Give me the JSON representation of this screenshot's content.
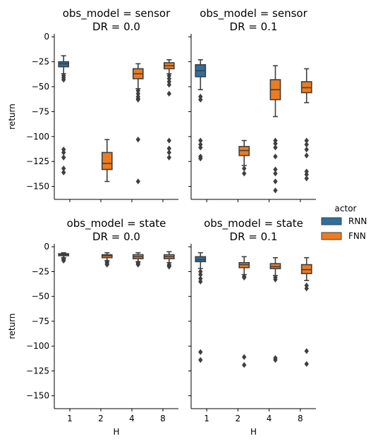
{
  "chart_data": {
    "type": "box",
    "hue_title": "actor",
    "hue_levels": [
      "RNN",
      "FNN"
    ],
    "colors": {
      "RNN": "#2f6f9e",
      "FNN": "#ec7c22",
      "line": "#3f3f3f"
    },
    "x_categories": [
      "1",
      "2",
      "4",
      "8"
    ],
    "xlabel": "H",
    "ylabel": "return",
    "ylim": [
      -163,
      3
    ],
    "yticks": [
      0,
      -25,
      -50,
      -75,
      -100,
      -125,
      -150
    ],
    "ytick_labels": [
      "0",
      "−25",
      "−50",
      "−75",
      "−100",
      "−125",
      "−150"
    ],
    "panels": [
      {
        "title_line1": "obs_model = sensor",
        "title_line2": "DR = 0.0",
        "boxes": [
          {
            "x": "1",
            "hue": "RNN",
            "q1": -30,
            "median": -27,
            "q3": -25,
            "whisker_low": -37,
            "whisker_high": -19,
            "outliers": [
              -39,
              -41,
              -43,
              -113,
              -116,
              -121,
              -132,
              -136
            ]
          },
          {
            "x": "2",
            "hue": "FNN",
            "q1": -133,
            "median": -127,
            "q3": -116,
            "whisker_low": -145,
            "whisker_high": -103,
            "outliers": []
          },
          {
            "x": "4",
            "hue": "FNN",
            "q1": -42,
            "median": -37,
            "q3": -32,
            "whisker_low": -52,
            "whisker_high": -27,
            "outliers": [
              -54,
              -57,
              -60,
              -62,
              -63,
              -103,
              -145
            ]
          },
          {
            "x": "8",
            "hue": "FNN",
            "q1": -32,
            "median": -29,
            "q3": -26,
            "whisker_low": -37,
            "whisker_high": -23,
            "outliers": [
              -39,
              -42,
              -45,
              -48,
              -57,
              -104,
              -112,
              -116,
              -121
            ]
          }
        ]
      },
      {
        "title_line1": "obs_model = sensor",
        "title_line2": "DR = 0.1",
        "boxes": [
          {
            "x": "1",
            "hue": "RNN",
            "q1": -40,
            "median": -34,
            "q3": -28,
            "whisker_low": -53,
            "whisker_high": -23,
            "outliers": [
              -60,
              -63,
              -104,
              -108,
              -111,
              -120,
              -122
            ]
          },
          {
            "x": "2",
            "hue": "FNN",
            "q1": -119,
            "median": -114,
            "q3": -110,
            "whisker_low": -129,
            "whisker_high": -104,
            "outliers": [
              -132,
              -137
            ]
          },
          {
            "x": "4",
            "hue": "FNN",
            "q1": -63,
            "median": -53,
            "q3": -43,
            "whisker_low": -80,
            "whisker_high": -29,
            "outliers": [
              -104,
              -107,
              -111,
              -120,
              -133,
              -137,
              -145,
              -154
            ]
          },
          {
            "x": "8",
            "hue": "FNN",
            "q1": -56,
            "median": -51,
            "q3": -45,
            "whisker_low": -66,
            "whisker_high": -32,
            "outliers": [
              -104,
              -108,
              -113,
              -119,
              -135,
              -138,
              -142
            ]
          }
        ]
      },
      {
        "title_line1": "obs_model = state",
        "title_line2": "DR = 0.0",
        "boxes": [
          {
            "x": "1",
            "hue": "RNN",
            "q1": -9,
            "median": -8,
            "q3": -7,
            "whisker_low": -11,
            "whisker_high": -6,
            "outliers": [
              -12,
              -13,
              -14
            ]
          },
          {
            "x": "2",
            "hue": "FNN",
            "q1": -11,
            "median": -9,
            "q3": -8,
            "whisker_low": -14,
            "whisker_high": -6,
            "outliers": [
              -15,
              -16,
              -17,
              -18
            ]
          },
          {
            "x": "4",
            "hue": "FNN",
            "q1": -12,
            "median": -10,
            "q3": -8,
            "whisker_low": -15,
            "whisker_high": -6,
            "outliers": [
              -16,
              -17,
              -18
            ]
          },
          {
            "x": "8",
            "hue": "FNN",
            "q1": -12,
            "median": -10,
            "q3": -8,
            "whisker_low": -16,
            "whisker_high": -5,
            "outliers": [
              -18,
              -19,
              -20
            ]
          }
        ]
      },
      {
        "title_line1": "obs_model = state",
        "title_line2": "DR = 0.1",
        "boxes": [
          {
            "x": "1",
            "hue": "RNN",
            "q1": -15,
            "median": -13,
            "q3": -10,
            "whisker_low": -22,
            "whisker_high": -6,
            "outliers": [
              -25,
              -28,
              -32,
              -35,
              -106,
              -114
            ]
          },
          {
            "x": "2",
            "hue": "FNN",
            "q1": -21,
            "median": -18,
            "q3": -16,
            "whisker_low": -28,
            "whisker_high": -10,
            "outliers": [
              -30,
              -31,
              -111,
              -119
            ]
          },
          {
            "x": "4",
            "hue": "FNN",
            "q1": -22,
            "median": -20,
            "q3": -17,
            "whisker_low": -29,
            "whisker_high": -11,
            "outliers": [
              -31,
              -33,
              -112,
              -114
            ]
          },
          {
            "x": "8",
            "hue": "FNN",
            "q1": -27,
            "median": -23,
            "q3": -18,
            "whisker_low": -34,
            "whisker_high": -11,
            "outliers": [
              -39,
              -42,
              -105,
              -118
            ]
          }
        ]
      }
    ],
    "legend_placement": "right",
    "grid": false
  }
}
